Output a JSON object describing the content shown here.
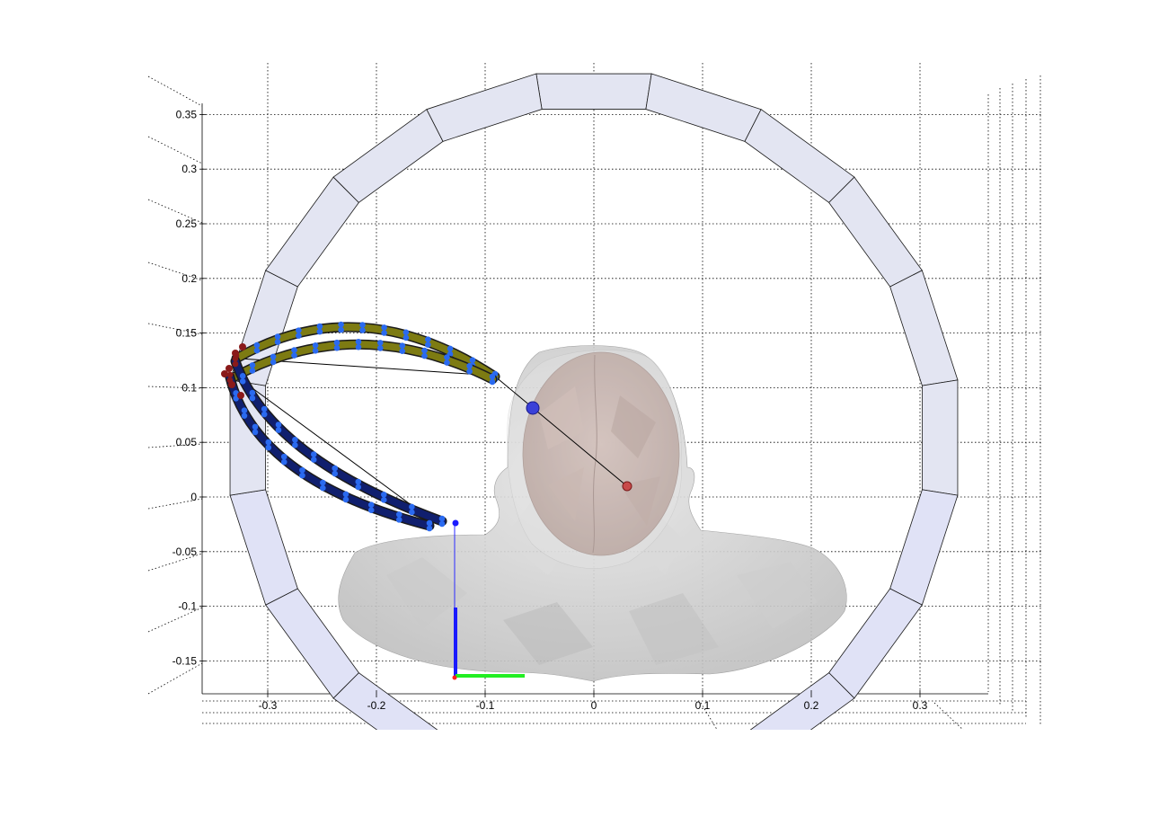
{
  "figure": {
    "x_ticks": [
      "-0.3",
      "-0.2",
      "-0.1",
      "0",
      "0.1",
      "0.2",
      "0.3"
    ],
    "y_ticks": [
      "0.35",
      "0.3",
      "0.25",
      "0.2",
      "0.15",
      "0.1",
      "0.05",
      "0",
      "-0.05",
      "-0.1",
      "-0.15"
    ],
    "x_range": [
      -0.36,
      0.36
    ],
    "y_range": [
      -0.185,
      0.365
    ],
    "grid": true
  },
  "colors": {
    "ring_fill": "#e3e5f2",
    "head_skin": "#cfcfcf",
    "brain": "#b59a92",
    "coil_olive": "#7d7b12",
    "coil_navy": "#101f6e",
    "marker_blue": "#2a6af0",
    "marker_red": "#8a1a1a",
    "axis_blue": "#1a1aff",
    "axis_green": "#22ee22",
    "axis_red": "#ff2020"
  },
  "scene_objects": [
    "gantry-ring",
    "head-and-shoulders-mesh",
    "brain-mesh",
    "upper-coil-arc-pair",
    "lower-coil-arc-pair",
    "target-point",
    "origin-triad"
  ]
}
